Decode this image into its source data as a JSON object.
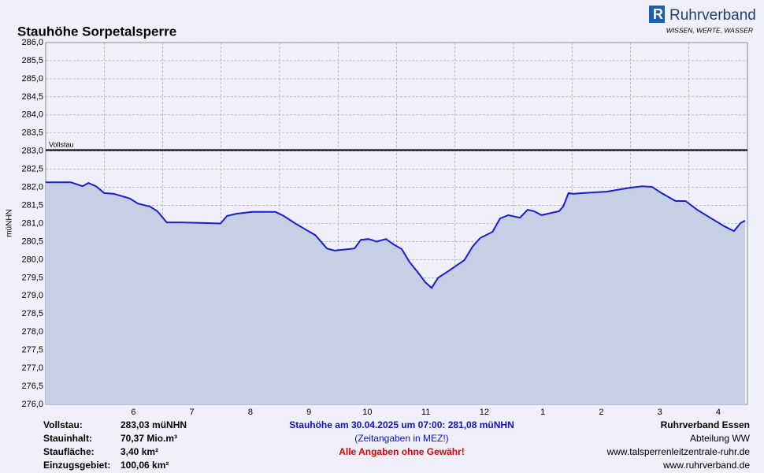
{
  "header": {
    "title": "Stauhöhe Sorpetalsperre",
    "brand": "Ruhrverband",
    "tagline": "WISSEN, WERTE, WASSER"
  },
  "chart_data": {
    "type": "area",
    "y_label": "müNHN",
    "x": [
      0,
      0.43,
      0.63,
      0.73,
      0.86,
      1.0,
      1.17,
      1.44,
      1.58,
      1.78,
      1.91,
      2.07,
      2.32,
      2.99,
      3.1,
      3.26,
      3.53,
      3.93,
      4.07,
      4.27,
      4.47,
      4.61,
      4.81,
      4.94,
      5.28,
      5.39,
      5.52,
      5.66,
      5.82,
      5.95,
      6.09,
      6.22,
      6.36,
      6.49,
      6.6,
      6.71,
      6.9,
      7.16,
      7.3,
      7.43,
      7.64,
      7.77,
      7.91,
      8.11,
      8.24,
      8.35,
      8.48,
      8.78,
      8.85,
      8.94,
      9.02,
      9.19,
      9.59,
      9.99,
      10.2,
      10.37,
      10.53,
      10.77,
      10.94,
      11.14,
      11.34,
      11.61,
      11.77,
      11.88,
      11.96
    ],
    "series": [
      {
        "name": "Stauhöhe",
        "color": "#1c1cd0",
        "fill": "#c5cfe6",
        "values": [
          282.14,
          282.14,
          282.03,
          282.12,
          282.03,
          281.84,
          281.82,
          281.69,
          281.55,
          281.47,
          281.34,
          281.03,
          281.03,
          281.0,
          281.21,
          281.27,
          281.32,
          281.32,
          281.21,
          281.0,
          280.81,
          280.68,
          280.31,
          280.25,
          280.31,
          280.55,
          280.57,
          280.5,
          280.57,
          280.42,
          280.29,
          279.94,
          279.66,
          279.38,
          279.22,
          279.5,
          279.7,
          279.99,
          280.36,
          280.6,
          280.77,
          281.14,
          281.23,
          281.16,
          281.38,
          281.34,
          281.23,
          281.34,
          281.47,
          281.84,
          281.82,
          281.84,
          281.88,
          281.99,
          282.03,
          282.01,
          281.84,
          281.62,
          281.62,
          281.38,
          281.18,
          280.92,
          280.79,
          281.01,
          281.08
        ]
      }
    ],
    "reference_line": {
      "value": 283.03,
      "label": "Vollstau",
      "color": "#000000"
    },
    "xlim": [
      0,
      12
    ],
    "xticks": [
      {
        "value": 1.5,
        "label": "6"
      },
      {
        "value": 2.5,
        "label": "7"
      },
      {
        "value": 3.5,
        "label": "8"
      },
      {
        "value": 4.5,
        "label": "9"
      },
      {
        "value": 5.5,
        "label": "10"
      },
      {
        "value": 6.5,
        "label": "11"
      },
      {
        "value": 7.5,
        "label": "12"
      },
      {
        "value": 8.5,
        "label": "1"
      },
      {
        "value": 9.5,
        "label": "2"
      },
      {
        "value": 10.5,
        "label": "3"
      },
      {
        "value": 11.5,
        "label": "4"
      }
    ],
    "xgrid": [
      1,
      2,
      3,
      4,
      5,
      6,
      7,
      8,
      9,
      10,
      11
    ],
    "ylim": [
      276,
      286
    ],
    "yticks": [
      {
        "value": 276,
        "label": "276,0"
      },
      {
        "value": 276.5,
        "label": "276,5"
      },
      {
        "value": 277,
        "label": "277,0"
      },
      {
        "value": 277.5,
        "label": "277,5"
      },
      {
        "value": 278,
        "label": "278,0"
      },
      {
        "value": 278.5,
        "label": "278,5"
      },
      {
        "value": 279,
        "label": "279,0"
      },
      {
        "value": 279.5,
        "label": "279,5"
      },
      {
        "value": 280,
        "label": "280,0"
      },
      {
        "value": 280.5,
        "label": "280,5"
      },
      {
        "value": 281,
        "label": "281,0"
      },
      {
        "value": 281.5,
        "label": "281,5"
      },
      {
        "value": 282,
        "label": "282,0"
      },
      {
        "value": 282.5,
        "label": "282,5"
      },
      {
        "value": 283,
        "label": "283,0"
      },
      {
        "value": 283.5,
        "label": "283,5"
      },
      {
        "value": 284,
        "label": "284,0"
      },
      {
        "value": 284.5,
        "label": "284,5"
      },
      {
        "value": 285,
        "label": "285,0"
      },
      {
        "value": 285.5,
        "label": "285,5"
      },
      {
        "value": 286,
        "label": "286,0"
      }
    ],
    "grid": true
  },
  "footer": {
    "left": [
      {
        "label": "Vollstau:",
        "value": "283,03 müNHN"
      },
      {
        "label": "Stauinhalt:",
        "value": "70,37 Mio.m³"
      },
      {
        "label": "Staufläche:",
        "value": "3,40 km²"
      },
      {
        "label": "Einzugsgebiet:",
        "value": "100,06 km²"
      }
    ],
    "center": [
      "Stauhöhe am 30.04.2025 um 07:00: 281,08  müNHN",
      "(Zeitangaben in MEZ!)",
      "Alle Angaben ohne Gewähr!"
    ],
    "right": [
      "Ruhrverband Essen",
      "Abteilung WW",
      "www.talsperrenleitzentrale-ruhr.de",
      "www.ruhrverband.de"
    ]
  }
}
